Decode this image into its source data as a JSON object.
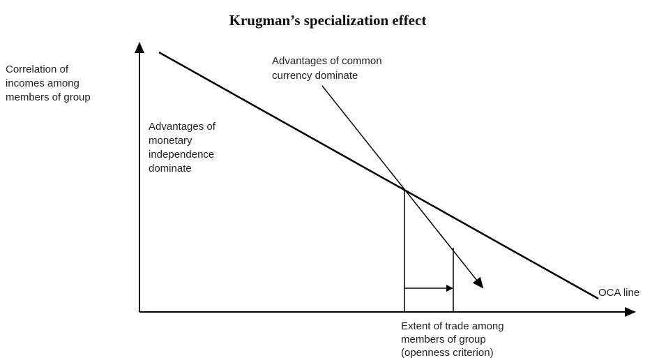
{
  "title": "Krugman’s specialization effect",
  "y_axis_label": [
    "Correlation of",
    "incomes among",
    "members of group"
  ],
  "x_axis_label": [
    "Extent of trade among",
    "members of group",
    "(openness criterion)"
  ],
  "region_labels": {
    "common_currency": [
      "Advantages of common",
      "currency dominate"
    ],
    "monetary_independence": [
      "Advantages of",
      "monetary",
      "independence",
      "dominate"
    ]
  },
  "line_label": "OCA line"
}
